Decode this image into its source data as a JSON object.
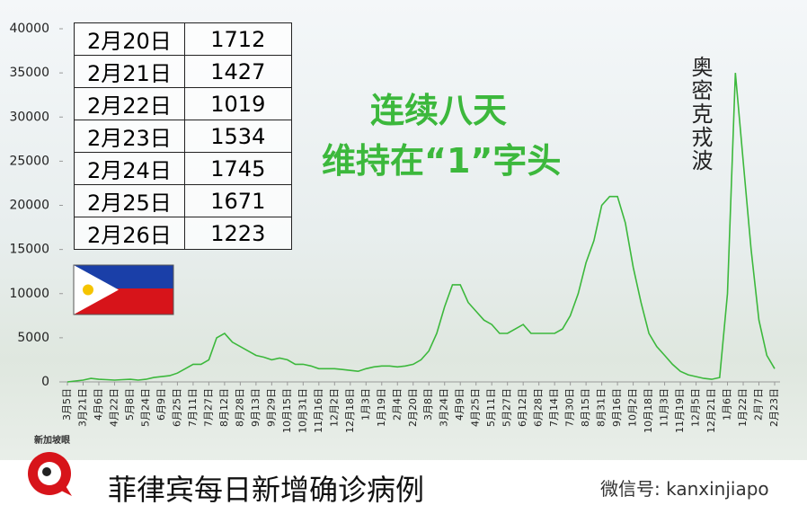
{
  "chart_data": {
    "type": "line",
    "annotation_main": [
      "连续八天",
      "维持在“1”字头"
    ],
    "annotation_wave": "奥密克戎波",
    "categories": [
      "3月5日",
      null,
      "3月21日",
      null,
      "4月6日",
      null,
      "4月22日",
      null,
      "5月8日",
      null,
      "5月24日",
      null,
      "6月9日",
      null,
      "6月25日",
      null,
      "7月11日",
      null,
      "7月27日",
      null,
      "8月12日",
      null,
      "8月28日",
      null,
      "9月13日",
      null,
      "9月29日",
      null,
      "10月15日",
      null,
      "10月31日",
      null,
      "11月16日",
      null,
      "12月2日",
      null,
      "12月18日",
      null,
      "1月3日",
      null,
      "1月19日",
      null,
      "2月4日",
      null,
      "2月20日",
      null,
      "3月8日",
      null,
      "3月24日",
      null,
      "4月9日",
      null,
      "4月25日",
      null,
      "5月11日",
      null,
      "5月27日",
      null,
      "6月12日",
      null,
      "6月28日",
      null,
      "7月14日",
      null,
      "7月30日",
      null,
      "8月15日",
      null,
      "8月31日",
      null,
      "9月16日",
      null,
      "10月2日",
      null,
      "10月18日",
      null,
      "11月3日",
      null,
      "11月19日",
      null,
      "12月5日",
      null,
      "12月21日",
      null,
      "1月6日",
      null,
      "1月22日",
      null,
      "2月7日",
      null,
      "2月23日"
    ],
    "values": [
      0,
      100,
      200,
      400,
      300,
      250,
      200,
      250,
      300,
      200,
      300,
      500,
      600,
      700,
      1000,
      1500,
      2000,
      2000,
      2500,
      5000,
      5500,
      4500,
      4000,
      3500,
      3000,
      2800,
      2500,
      2700,
      2500,
      2000,
      2000,
      1800,
      1500,
      1500,
      1500,
      1400,
      1300,
      1200,
      1500,
      1700,
      1800,
      1800,
      1700,
      1800,
      2000,
      2500,
      3500,
      5500,
      8500,
      11000,
      11000,
      9000,
      8000,
      7000,
      6500,
      5500,
      5500,
      6000,
      6500,
      5500,
      5500,
      5500,
      5500,
      6000,
      7500,
      10000,
      13500,
      16000,
      20000,
      21000,
      21000,
      18000,
      13000,
      9000,
      5500,
      4000,
      3000,
      2000,
      1200,
      800,
      600,
      400,
      300,
      500,
      10000,
      35000,
      25000,
      15000,
      7000,
      3000,
      1500
    ],
    "color": "#3cb83c",
    "ylim": [
      0,
      40000
    ],
    "yticks": [
      0,
      5000,
      10000,
      15000,
      20000,
      25000,
      30000,
      35000,
      40000
    ]
  },
  "table": {
    "rows": [
      [
        "2月20日",
        1712
      ],
      [
        "2月21日",
        1427
      ],
      [
        "2月22日",
        1019
      ],
      [
        "2月23日",
        1534
      ],
      [
        "2月24日",
        1745
      ],
      [
        "2月25日",
        1671
      ],
      [
        "2月26日",
        1223
      ]
    ]
  },
  "footer": {
    "title": "菲律宾每日新增确诊病例",
    "logo": "新加坡眼",
    "wechat": "微信号: kanxinjiapo"
  }
}
